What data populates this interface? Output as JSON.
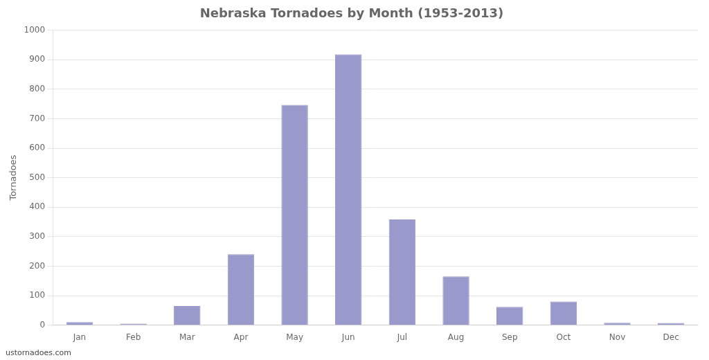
{
  "chart_data": {
    "type": "bar",
    "title": "Nebraska Tornadoes by Month (1953-2013)",
    "categories": [
      "Jan",
      "Feb",
      "Mar",
      "Apr",
      "May",
      "Jun",
      "Jul",
      "Aug",
      "Sep",
      "Oct",
      "Nov",
      "Dec"
    ],
    "values": [
      10,
      5,
      65,
      240,
      747,
      918,
      358,
      165,
      62,
      80,
      8,
      7
    ],
    "color": "#9999cc",
    "ylabel": "Tornadoes",
    "ylim": [
      0,
      1000
    ],
    "yticks": [
      0,
      100,
      200,
      300,
      400,
      500,
      600,
      700,
      800,
      900,
      1000
    ],
    "grid": true,
    "annotations": [
      "ustornadoes.com"
    ]
  }
}
